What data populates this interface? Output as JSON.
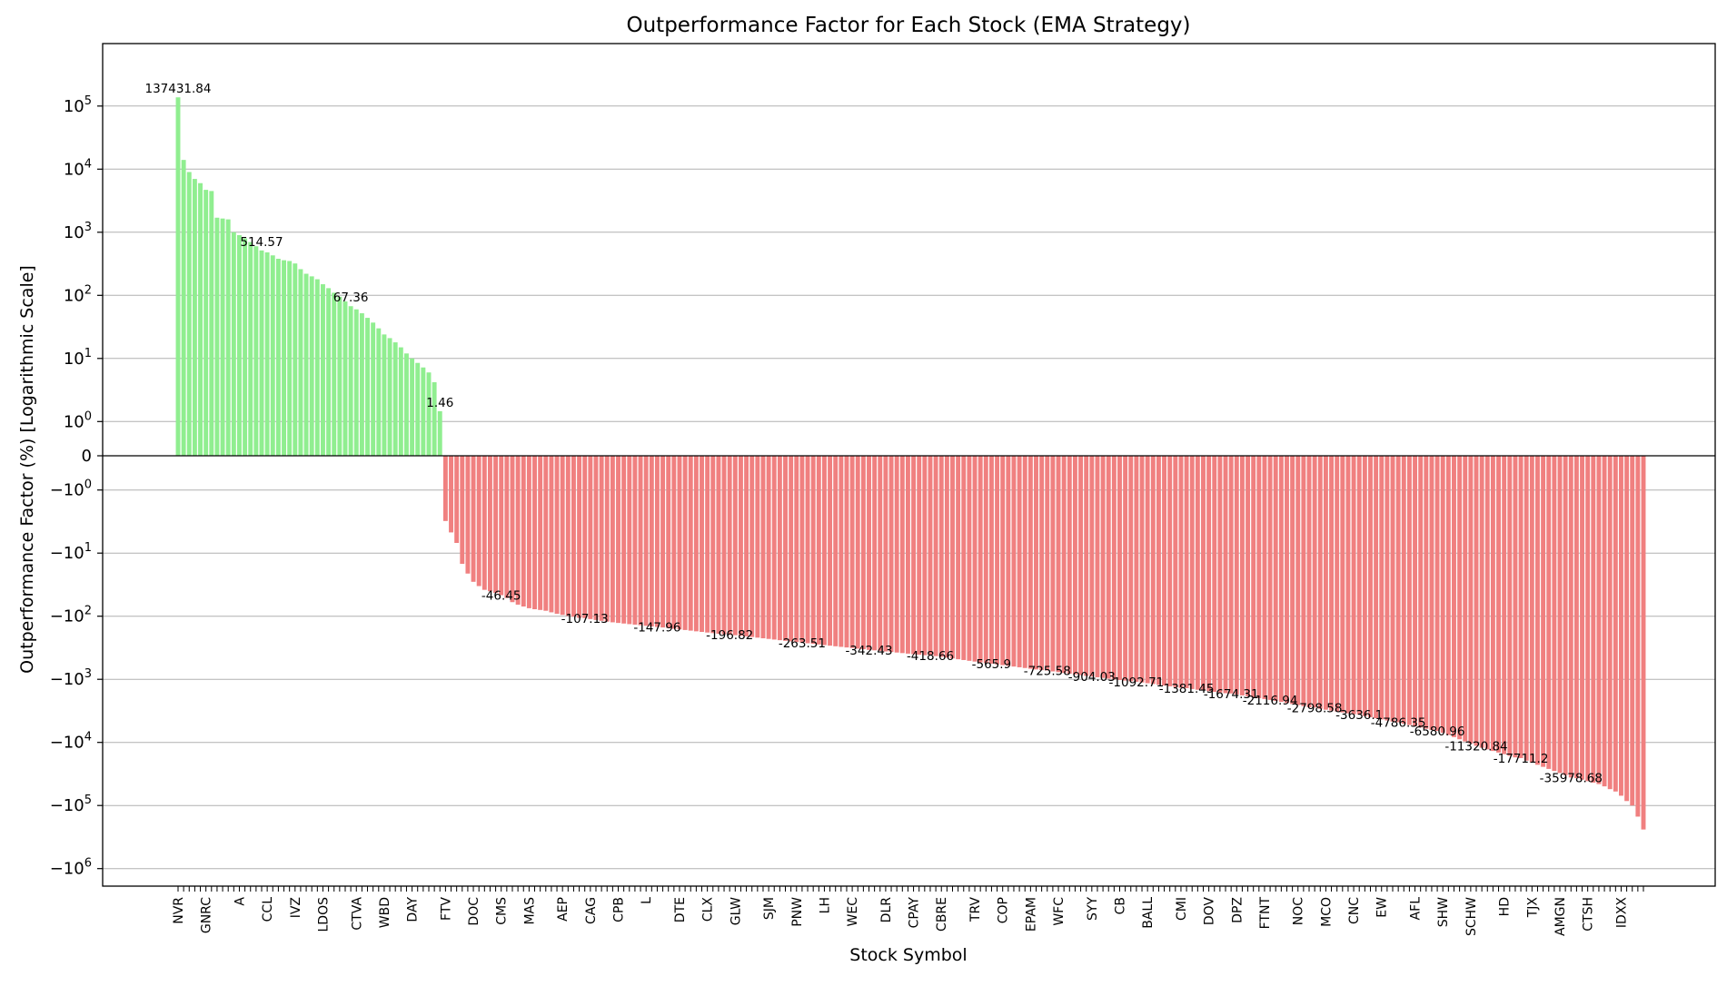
{
  "chart_data": {
    "type": "bar",
    "title": "Outperformance Factor for Each Stock (EMA Strategy)",
    "xlabel": "Stock Symbol",
    "ylabel": "Outperformance Factor (%) [Logarithmic Scale]",
    "y_scale": "symlog",
    "y_ticks": [
      {
        "base": "10",
        "exp": "5"
      },
      {
        "base": "10",
        "exp": "4"
      },
      {
        "base": "10",
        "exp": "3"
      },
      {
        "base": "10",
        "exp": "2"
      },
      {
        "base": "10",
        "exp": "1"
      },
      {
        "base": "10",
        "exp": "0"
      },
      {
        "base": "0",
        "exp": ""
      },
      {
        "base": "−10",
        "exp": "0"
      },
      {
        "base": "−10",
        "exp": "1"
      },
      {
        "base": "−10",
        "exp": "2"
      },
      {
        "base": "−10",
        "exp": "3"
      },
      {
        "base": "−10",
        "exp": "4"
      },
      {
        "base": "−10",
        "exp": "5"
      },
      {
        "base": "−10",
        "exp": "6"
      }
    ],
    "grid": "horizontal",
    "positive_color": "#90ee90",
    "negative_color": "#f08080",
    "tick_labels": [
      "NVR",
      "GNRC",
      "A",
      "CCL",
      "IVZ",
      "LDOS",
      "CTVA",
      "WBD",
      "DAY",
      "FTV",
      "DOC",
      "CMS",
      "MAS",
      "AEP",
      "CAG",
      "CPB",
      "L",
      "DTE",
      "CLX",
      "GLW",
      "SJM",
      "PNW",
      "LH",
      "WEC",
      "DLR",
      "CPAY",
      "CBRE",
      "TRV",
      "COP",
      "EPAM",
      "WFC",
      "SYY",
      "CB",
      "BALL",
      "CMI",
      "DOV",
      "DPZ",
      "FTNT",
      "NOC",
      "MCO",
      "CNC",
      "EW",
      "AFL",
      "SHW",
      "SCHW",
      "HD",
      "TJX",
      "AMGN",
      "CTSH",
      "IDXX"
    ],
    "annotations": [
      "137431.84",
      "514.57",
      "67.36",
      "1.46",
      "-46.45",
      "-107.13",
      "-147.96",
      "-196.82",
      "-263.51",
      "-342.43",
      "-418.66",
      "-565.9",
      "-725.58",
      "-904.03",
      "-1092.71",
      "-1381.45",
      "-1674.31",
      "-2116.94",
      "-2798.58",
      "-3636.1",
      "-4786.35",
      "-6580.96",
      "-11320.84",
      "-17711.2",
      "-35978.68"
    ],
    "values": [
      137431.84,
      14000,
      9000,
      7000,
      6000,
      4700,
      4500,
      1700,
      1650,
      1600,
      1000,
      900,
      800,
      700,
      600,
      514.57,
      480,
      430,
      380,
      360,
      350,
      320,
      260,
      220,
      200,
      180,
      150,
      130,
      110,
      95,
      80,
      67.36,
      60,
      52,
      44,
      37,
      30,
      24,
      21,
      18,
      15,
      12,
      10,
      8.5,
      7.2,
      6.0,
      4.2,
      1.46,
      -3.1,
      -4.7,
      -6.9,
      -14.8,
      -21.1,
      -28.5,
      -33.3,
      -38.2,
      -40.3,
      -42.8,
      -46.45,
      -51.4,
      -59.9,
      -65.6,
      -70.2,
      -74.7,
      -77.5,
      -79.6,
      -82.0,
      -86.8,
      -91.4,
      -95.4,
      -98.7,
      -102.1,
      -106.4,
      -107.13,
      -111.0,
      -114.8,
      -118.4,
      -121.8,
      -125.0,
      -127.9,
      -130.6,
      -133.4,
      -135.9,
      -138.8,
      -141.9,
      -145.2,
      -147.96,
      -150.9,
      -154.3,
      -157.9,
      -161.7,
      -165.5,
      -169.4,
      -173.6,
      -177.5,
      -181.5,
      -185.3,
      -189.4,
      -193.5,
      -196.82,
      -199.8,
      -204.1,
      -208.8,
      -213.6,
      -218.6,
      -223.8,
      -229.0,
      -234.4,
      -240.0,
      -245.6,
      -251.3,
      -257.2,
      -263.51,
      -268.0,
      -274.1,
      -280.3,
      -286.6,
      -293.0,
      -299.5,
      -306.0,
      -312.7,
      -319.5,
      -326.4,
      -333.4,
      -342.43,
      -347.5,
      -354.6,
      -361.9,
      -369.2,
      -376.6,
      -384.1,
      -391.7,
      -399.4,
      -407.2,
      -415.0,
      -418.66,
      -428.5,
      -441.1,
      -454.0,
      -467.2,
      -480.8,
      -494.7,
      -509.0,
      -523.6,
      -538.6,
      -553.9,
      -565.9,
      -580.6,
      -596.0,
      -611.8,
      -628.0,
      -644.7,
      -661.8,
      -679.3,
      -697.4,
      -715.9,
      -725.58,
      -749.6,
      -770.2,
      -791.5,
      -813.2,
      -835.6,
      -858.6,
      -882.2,
      -904.03,
      -929.1,
      -951.7,
      -974.9,
      -998.6,
      -1022.9,
      -1047.8,
      -1073.4,
      -1092.71,
      -1122.6,
      -1154.3,
      -1187.0,
      -1220.6,
      -1255.1,
      -1290.6,
      -1327.2,
      -1364.8,
      -1381.45,
      -1426.1,
      -1462.7,
      -1500.2,
      -1538.6,
      -1578.1,
      -1618.6,
      -1660.1,
      -1674.31,
      -1739.8,
      -1798.4,
      -1858.9,
      -1921.5,
      -1986.2,
      -2053.1,
      -2116.94,
      -2197.2,
      -2283.3,
      -2372.9,
      -2466.0,
      -2562.8,
      -2663.3,
      -2768.0,
      -2798.58,
      -2930.5,
      -3029.9,
      -3132.7,
      -3239.0,
      -3348.8,
      -3462.4,
      -3579.9,
      -3636.1,
      -3823.7,
      -3981.3,
      -4145.5,
      -4316.4,
      -4494.4,
      -4679.8,
      -4786.35,
      -5051.7,
      -5291.2,
      -5542.2,
      -5805.0,
      -6080.3,
      -6368.7,
      -6580.96,
      -7037.5,
      -7615.2,
      -8240.4,
      -8916.9,
      -9648.9,
      -10441.0,
      -11320.84,
      -12145.4,
      -12880.8,
      -13660.8,
      -14487.9,
      -15365.2,
      -16295.6,
      -17282.3,
      -17711.2,
      -19456.0,
      -20979.7,
      -22622.7,
      -24394.4,
      -26304.8,
      -28364.8,
      -30586.2,
      -32981.5,
      -35978.68,
      -36895.7,
      -38945.7,
      -41109.5,
      -43393.6,
      -45804.6,
      -49732.1,
      -55000.0,
      -60000.0,
      -70000.0,
      -85000.0,
      -100000.0,
      -150000.0,
      -240000.0
    ]
  }
}
